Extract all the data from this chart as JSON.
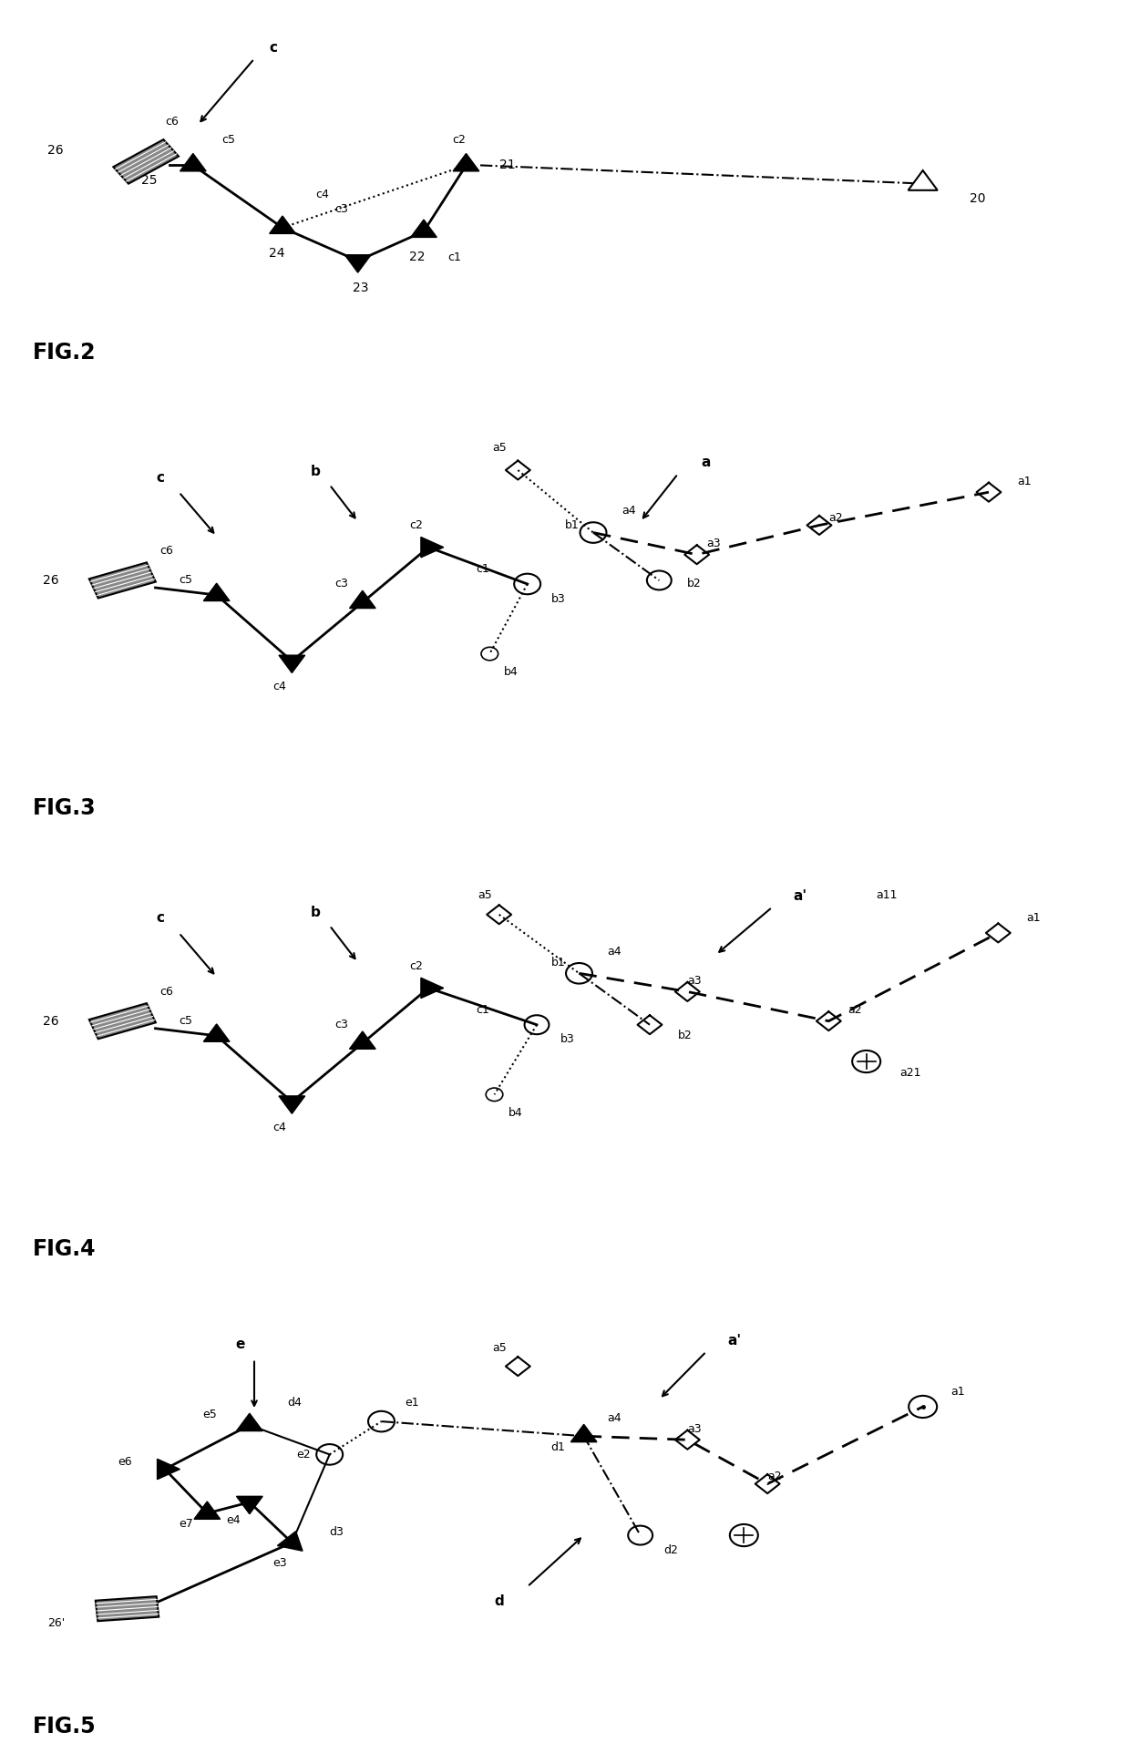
{
  "background_color": "#ffffff",
  "fig_titles": [
    "FIG.2",
    "FIG.3",
    "FIG.4",
    "FIG.5"
  ]
}
